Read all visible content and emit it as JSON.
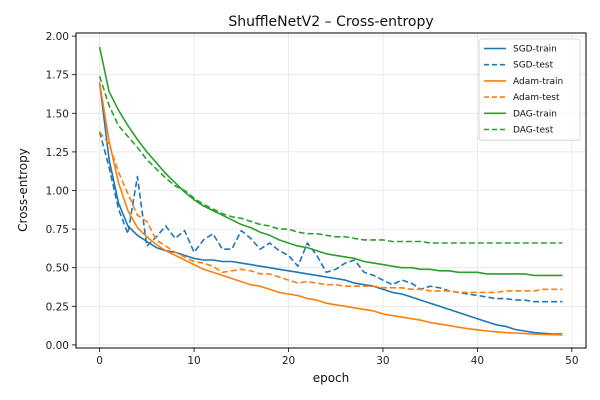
{
  "chart_data": {
    "type": "line",
    "title": "ShuffleNetV2 – Cross-entropy",
    "xlabel": "epoch",
    "ylabel": "Cross-entropy",
    "xlim": [
      -2.5,
      51.5
    ],
    "ylim": [
      -0.02,
      2.02
    ],
    "xticks": [
      0,
      10,
      20,
      30,
      40,
      50
    ],
    "yticks": [
      0.0,
      0.25,
      0.5,
      0.75,
      1.0,
      1.25,
      1.5,
      1.75,
      2.0
    ],
    "xtick_labels": [
      "0",
      "10",
      "20",
      "30",
      "40",
      "50"
    ],
    "ytick_labels": [
      "0.00",
      "0.25",
      "0.50",
      "0.75",
      "1.00",
      "1.25",
      "1.50",
      "1.75",
      "2.00"
    ],
    "grid": true,
    "legend_position": "top-right",
    "x": [
      0,
      1,
      2,
      3,
      4,
      5,
      6,
      7,
      8,
      9,
      10,
      11,
      12,
      13,
      14,
      15,
      16,
      17,
      18,
      19,
      20,
      21,
      22,
      23,
      24,
      25,
      26,
      27,
      28,
      29,
      30,
      31,
      32,
      33,
      34,
      35,
      36,
      37,
      38,
      39,
      40,
      41,
      42,
      43,
      44,
      45,
      46,
      47,
      48,
      49
    ],
    "series": [
      {
        "name": "SGD-train",
        "color": "#1f77b4",
        "dash": "solid",
        "values": [
          1.7,
          1.2,
          0.92,
          0.77,
          0.71,
          0.67,
          0.63,
          0.61,
          0.6,
          0.58,
          0.56,
          0.55,
          0.55,
          0.54,
          0.54,
          0.53,
          0.52,
          0.51,
          0.5,
          0.49,
          0.48,
          0.47,
          0.46,
          0.45,
          0.44,
          0.43,
          0.42,
          0.4,
          0.39,
          0.38,
          0.36,
          0.34,
          0.33,
          0.31,
          0.29,
          0.27,
          0.25,
          0.23,
          0.21,
          0.19,
          0.17,
          0.15,
          0.13,
          0.12,
          0.1,
          0.09,
          0.08,
          0.075,
          0.07,
          0.07
        ]
      },
      {
        "name": "SGD-test",
        "color": "#1f77b4",
        "dash": "dashed",
        "values": [
          1.38,
          1.15,
          0.88,
          0.72,
          1.09,
          0.64,
          0.7,
          0.77,
          0.69,
          0.74,
          0.6,
          0.68,
          0.72,
          0.62,
          0.62,
          0.74,
          0.69,
          0.62,
          0.66,
          0.61,
          0.58,
          0.51,
          0.66,
          0.58,
          0.47,
          0.49,
          0.53,
          0.55,
          0.47,
          0.45,
          0.42,
          0.39,
          0.42,
          0.4,
          0.36,
          0.38,
          0.37,
          0.35,
          0.34,
          0.33,
          0.32,
          0.31,
          0.3,
          0.3,
          0.29,
          0.29,
          0.28,
          0.28,
          0.28,
          0.28
        ]
      },
      {
        "name": "Adam-train",
        "color": "#ff7f0e",
        "dash": "solid",
        "values": [
          1.7,
          1.32,
          1.05,
          0.87,
          0.76,
          0.7,
          0.65,
          0.61,
          0.58,
          0.55,
          0.52,
          0.49,
          0.47,
          0.45,
          0.43,
          0.41,
          0.39,
          0.38,
          0.36,
          0.34,
          0.33,
          0.32,
          0.3,
          0.29,
          0.27,
          0.26,
          0.25,
          0.24,
          0.23,
          0.22,
          0.2,
          0.19,
          0.18,
          0.17,
          0.16,
          0.145,
          0.135,
          0.125,
          0.115,
          0.105,
          0.098,
          0.09,
          0.085,
          0.08,
          0.077,
          0.073,
          0.07,
          0.068,
          0.066,
          0.065
        ]
      },
      {
        "name": "Adam-test",
        "color": "#ff7f0e",
        "dash": "dashed",
        "values": [
          1.38,
          1.3,
          1.12,
          0.98,
          0.84,
          0.8,
          0.68,
          0.64,
          0.6,
          0.57,
          0.54,
          0.53,
          0.51,
          0.47,
          0.48,
          0.49,
          0.48,
          0.46,
          0.46,
          0.44,
          0.42,
          0.4,
          0.41,
          0.4,
          0.39,
          0.39,
          0.38,
          0.38,
          0.38,
          0.38,
          0.37,
          0.37,
          0.37,
          0.36,
          0.36,
          0.35,
          0.35,
          0.35,
          0.34,
          0.34,
          0.34,
          0.34,
          0.34,
          0.35,
          0.35,
          0.35,
          0.35,
          0.36,
          0.36,
          0.36
        ]
      },
      {
        "name": "DAG-train",
        "color": "#2ca02c",
        "dash": "solid",
        "values": [
          1.93,
          1.64,
          1.52,
          1.42,
          1.33,
          1.25,
          1.18,
          1.11,
          1.05,
          0.99,
          0.94,
          0.9,
          0.87,
          0.84,
          0.81,
          0.78,
          0.76,
          0.73,
          0.71,
          0.68,
          0.66,
          0.64,
          0.63,
          0.61,
          0.59,
          0.58,
          0.57,
          0.56,
          0.54,
          0.53,
          0.52,
          0.51,
          0.5,
          0.5,
          0.49,
          0.49,
          0.48,
          0.48,
          0.47,
          0.47,
          0.47,
          0.46,
          0.46,
          0.46,
          0.46,
          0.46,
          0.45,
          0.45,
          0.45,
          0.45
        ]
      },
      {
        "name": "DAG-test",
        "color": "#2ca02c",
        "dash": "dashed",
        "values": [
          1.74,
          1.55,
          1.42,
          1.35,
          1.28,
          1.2,
          1.14,
          1.08,
          1.03,
          1.0,
          0.95,
          0.91,
          0.88,
          0.85,
          0.83,
          0.82,
          0.8,
          0.78,
          0.77,
          0.75,
          0.75,
          0.73,
          0.72,
          0.72,
          0.71,
          0.7,
          0.7,
          0.69,
          0.68,
          0.68,
          0.68,
          0.67,
          0.67,
          0.67,
          0.67,
          0.66,
          0.66,
          0.66,
          0.66,
          0.66,
          0.66,
          0.66,
          0.66,
          0.66,
          0.66,
          0.66,
          0.66,
          0.66,
          0.66,
          0.66
        ]
      }
    ]
  }
}
